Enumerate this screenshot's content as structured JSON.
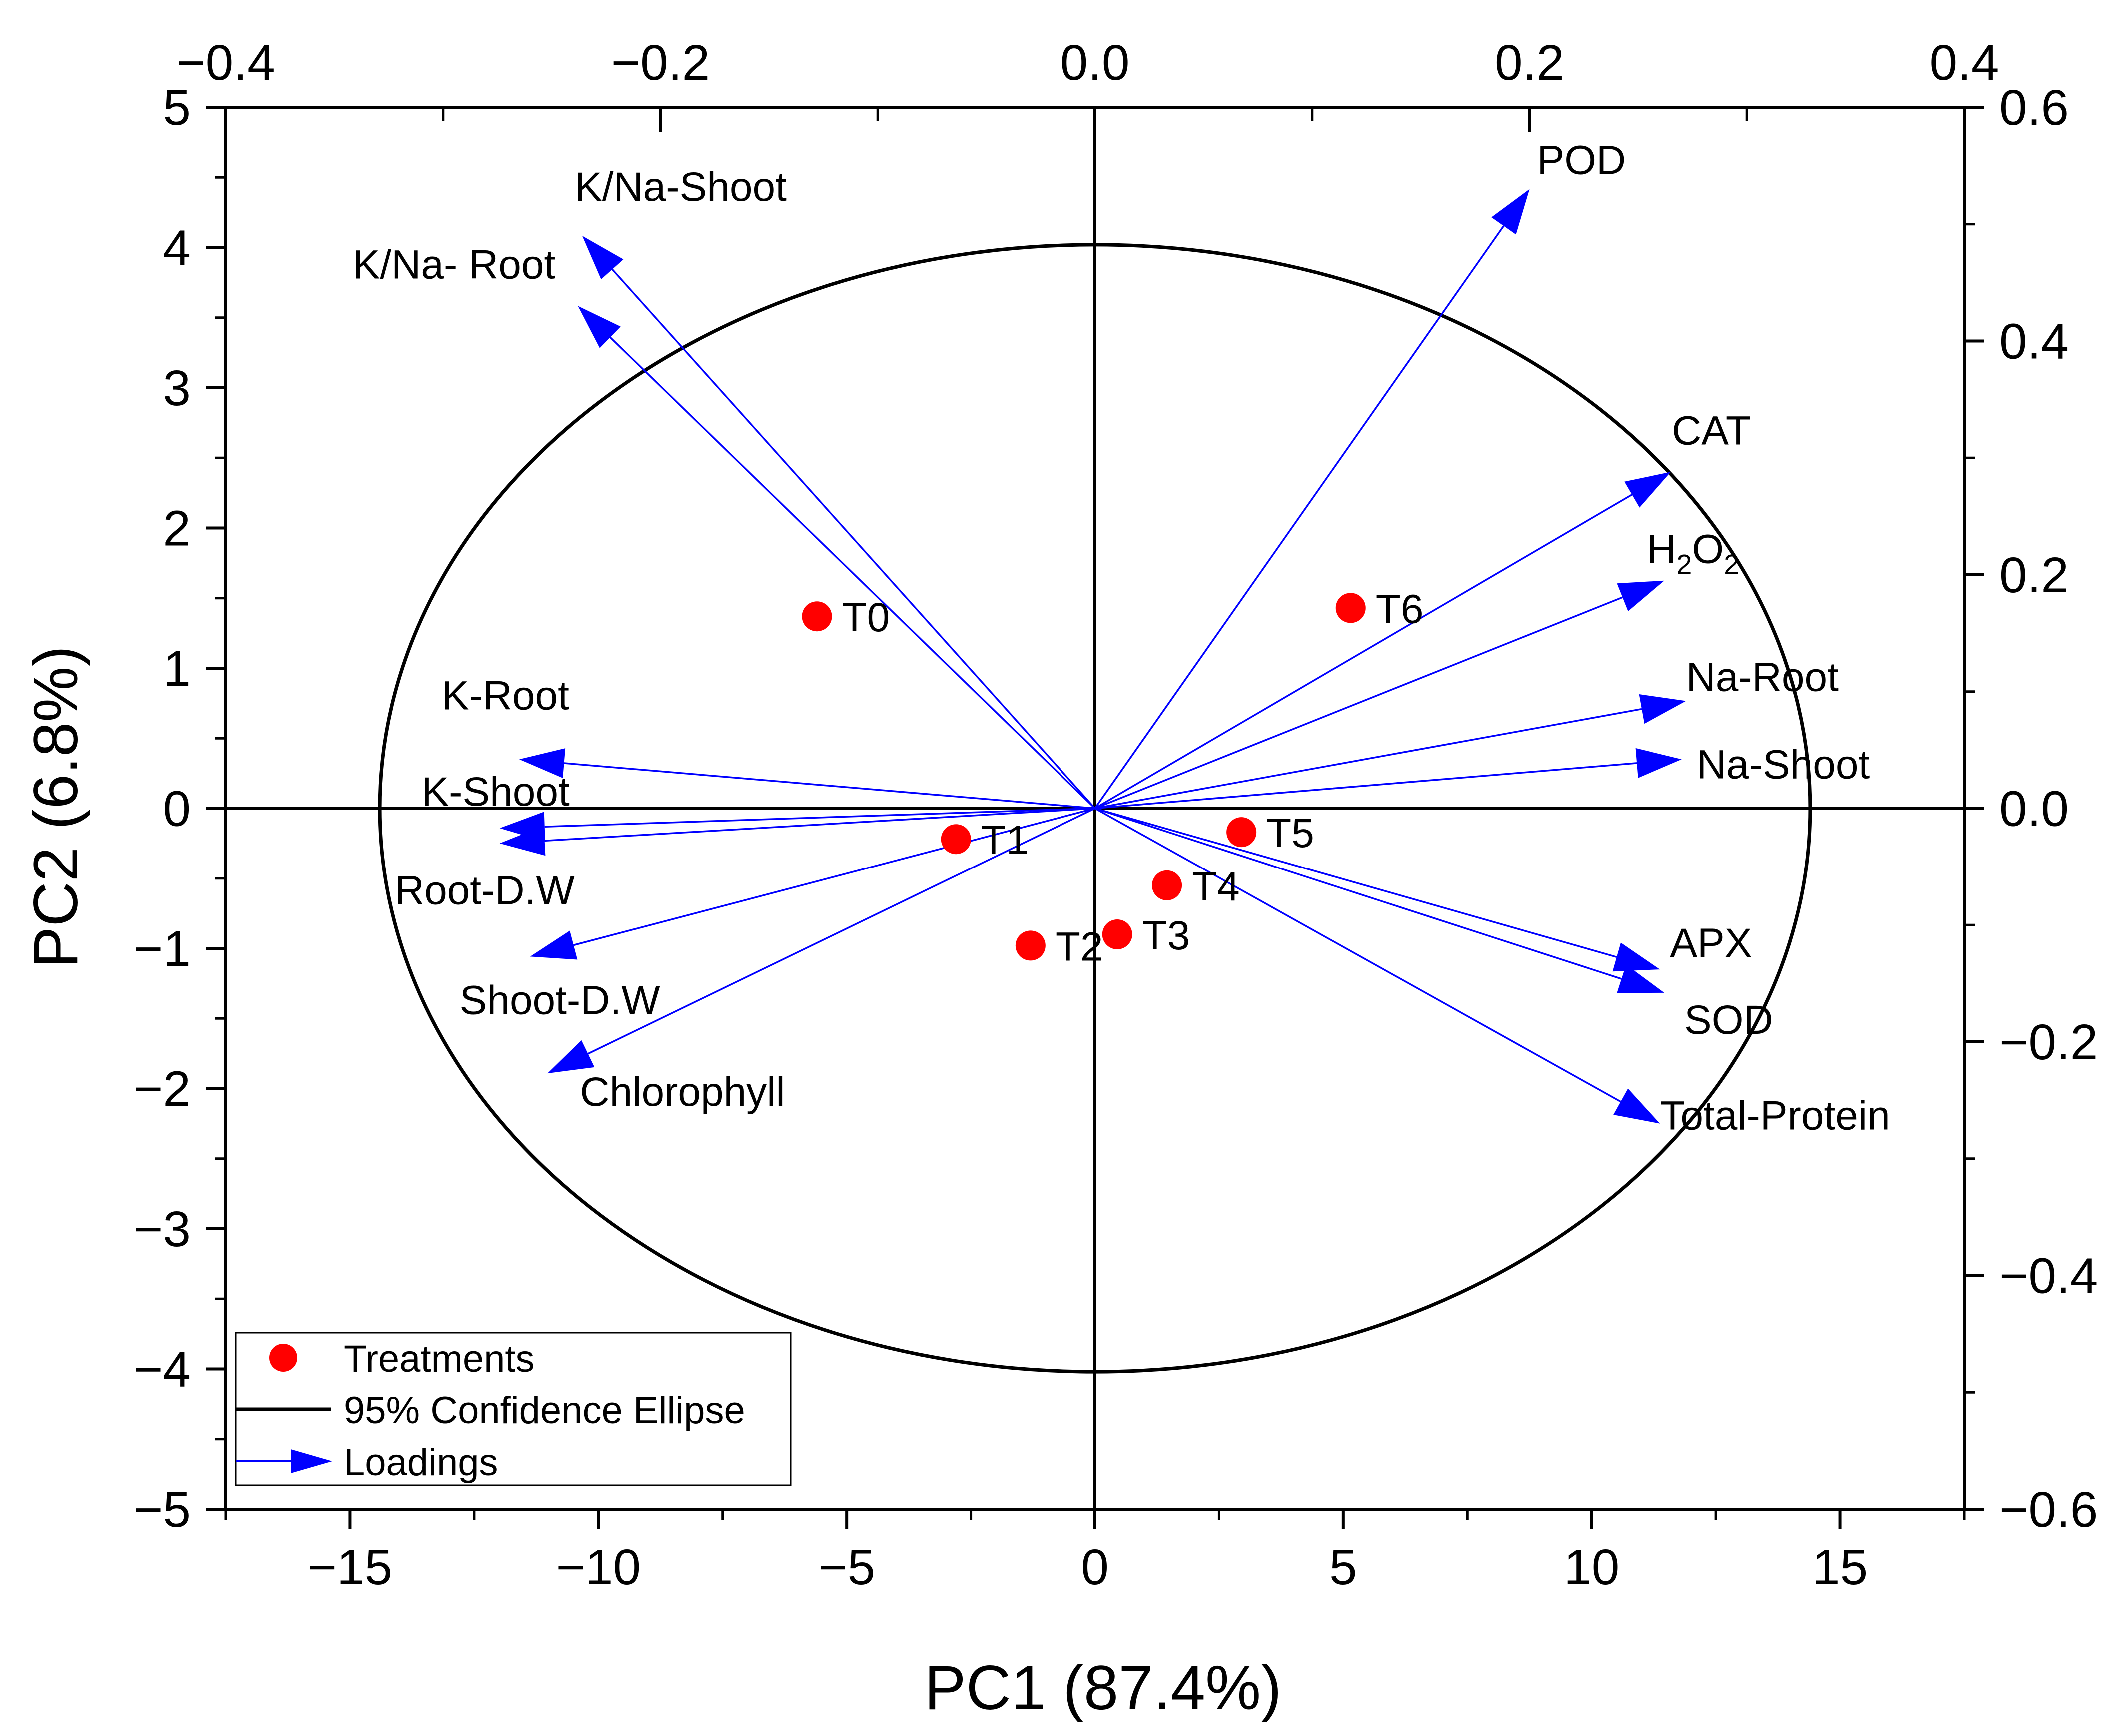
{
  "chart_data": {
    "type": "scatter",
    "subtype": "pca-biplot",
    "xlabel": "PC1 (87.4%)",
    "ylabel": "PC2 (6.8%)",
    "xlim": [
      -17.5,
      17.5
    ],
    "ylim": [
      -5,
      5
    ],
    "x_ticks": [
      -15,
      -10,
      -5,
      0,
      5,
      10,
      15
    ],
    "x_tick_labels": [
      "−15",
      "−10",
      "−5",
      "0",
      "5",
      "10",
      "15"
    ],
    "y_ticks": [
      -5,
      -4,
      -3,
      -2,
      -1,
      0,
      1,
      2,
      3,
      4,
      5
    ],
    "y_tick_labels": [
      "−5",
      "−4",
      "−3",
      "−2",
      "−1",
      "0",
      "1",
      "2",
      "3",
      "4",
      "5"
    ],
    "top_axis": {
      "lim": [
        -0.4,
        0.4
      ],
      "ticks": [
        -0.4,
        -0.2,
        0.0,
        0.2,
        0.4
      ],
      "tick_labels": [
        "−0.4",
        "−0.2",
        "0.0",
        "0.2",
        "0.4"
      ]
    },
    "right_axis": {
      "lim": [
        -0.6,
        0.6
      ],
      "ticks": [
        -0.6,
        -0.4,
        -0.2,
        0.0,
        0.2,
        0.4,
        0.6
      ],
      "tick_labels": [
        "−0.6",
        "−0.4",
        "−0.2",
        "0.0",
        "0.2",
        "0.4",
        "0.6"
      ]
    },
    "treatments": [
      {
        "name": "T0",
        "x": -5.6,
        "y": 1.37
      },
      {
        "name": "T1",
        "x": -2.8,
        "y": -0.22
      },
      {
        "name": "T2",
        "x": -1.3,
        "y": -0.98
      },
      {
        "name": "T3",
        "x": 0.45,
        "y": -0.9
      },
      {
        "name": "T4",
        "x": 1.45,
        "y": -0.55
      },
      {
        "name": "T5",
        "x": 2.95,
        "y": -0.17
      },
      {
        "name": "T6",
        "x": 5.15,
        "y": 1.43
      }
    ],
    "loadings": [
      {
        "name": "POD",
        "x": 0.2,
        "y": 0.53
      },
      {
        "name": "K/Na-Shoot",
        "x": -0.236,
        "y": 0.49
      },
      {
        "name": "K/Na- Root",
        "x": -0.238,
        "y": 0.43
      },
      {
        "name": "CAT",
        "x": 0.265,
        "y": 0.288
      },
      {
        "name": "H2O2",
        "x": 0.262,
        "y": 0.195
      },
      {
        "name": "Na-Root",
        "x": 0.272,
        "y": 0.092
      },
      {
        "name": "Na-Shoot",
        "x": 0.27,
        "y": 0.042
      },
      {
        "name": "K-Root",
        "x": -0.265,
        "y": 0.042
      },
      {
        "name": "K-Shoot",
        "x": -0.274,
        "y": -0.017
      },
      {
        "name": "Root-D.W",
        "x": -0.274,
        "y": -0.03
      },
      {
        "name": "Shoot-D.W",
        "x": -0.26,
        "y": -0.127
      },
      {
        "name": "Chlorophyll",
        "x": -0.252,
        "y": -0.227
      },
      {
        "name": "APX",
        "x": 0.26,
        "y": -0.138
      },
      {
        "name": "SOD",
        "x": 0.262,
        "y": -0.158
      },
      {
        "name": "Total-Protein",
        "x": 0.26,
        "y": -0.27
      }
    ],
    "ellipse": {
      "cx": 0,
      "cy": 0,
      "rx": 14.4,
      "ry": 4.02
    },
    "legend": {
      "position": "bottom-left",
      "entries": [
        "Treatments",
        "95% Confidence Ellipse",
        "Loadings"
      ]
    },
    "colors": {
      "points": "#ff0000",
      "loadings": "#0000ff",
      "ellipse": "#000000",
      "axes": "#000000"
    }
  }
}
